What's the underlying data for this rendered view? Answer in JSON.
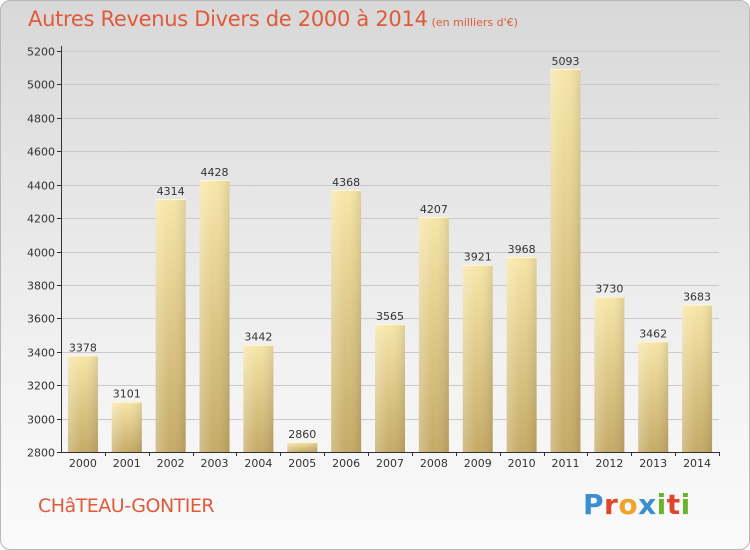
{
  "header": {
    "title": "Autres Revenus Divers de 2000 à 2014",
    "unit": "(en milliers d'€)"
  },
  "footer": {
    "town": "CHâTEAU-GONTIER",
    "logo_text": "Proxiti"
  },
  "colors": {
    "title": "#e05a3a",
    "bar_light": "#f6e3a3",
    "bar_dark": "#c9ad6a",
    "logo": [
      "#3a8fd1",
      "#e0462c",
      "#f0a22a",
      "#3a8fd1",
      "#6ab42d",
      "#e0462c",
      "#6ab42d"
    ]
  },
  "chart_data": {
    "type": "bar",
    "title": "Autres Revenus Divers de 2000 à 2014",
    "subtitle": "(en milliers d'€)",
    "xlabel": "",
    "ylabel": "",
    "categories": [
      "2000",
      "2001",
      "2002",
      "2003",
      "2004",
      "2005",
      "2006",
      "2007",
      "2008",
      "2009",
      "2010",
      "2011",
      "2012",
      "2013",
      "2014"
    ],
    "values": [
      3378,
      3101,
      4314,
      4428,
      3442,
      2860,
      4368,
      3565,
      4207,
      3921,
      3968,
      5093,
      3730,
      3462,
      3683
    ],
    "ylim": [
      2800,
      5200
    ],
    "yticks": [
      2800,
      3000,
      3200,
      3400,
      3600,
      3800,
      4000,
      4200,
      4400,
      4600,
      4800,
      5000,
      5200
    ],
    "grid": true,
    "legend": "none"
  }
}
